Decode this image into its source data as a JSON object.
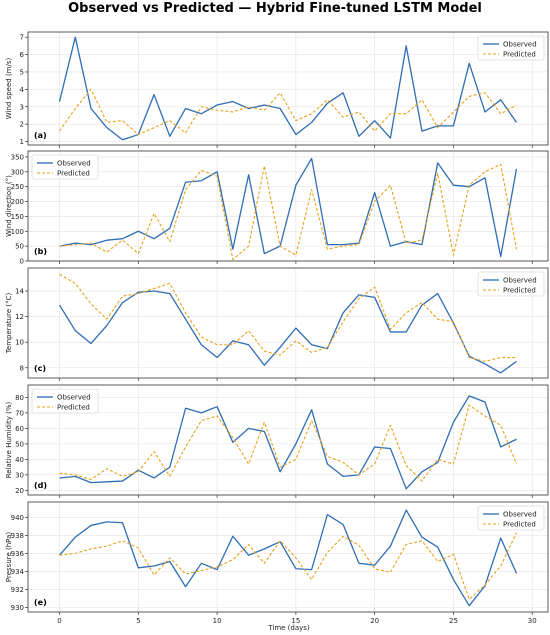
{
  "title": "Observed vs Predicted — Hybrid Fine-tuned LSTM Model",
  "xlabel": "Time (days)",
  "x_ticks": [
    0,
    5,
    10,
    15,
    20,
    25,
    30
  ],
  "x_tick_labels": [
    "0",
    "5",
    "10",
    "15",
    "20",
    "25",
    "30"
  ],
  "colors": {
    "observed": "#2f6db5",
    "predicted": "#e7a21a",
    "grid": "#e3e3e3",
    "axes": "#333333"
  },
  "chart_data": [
    {
      "type": "line",
      "panel_label": "(a)",
      "ylabel": "Wind speed (m/s)",
      "ylim": [
        0.8,
        7.3
      ],
      "y_ticks": [
        1,
        2,
        3,
        4,
        5,
        6,
        7
      ],
      "y_tick_labels": [
        "1",
        "2",
        "3",
        "4",
        "5",
        "6",
        "7"
      ],
      "x": [
        0,
        1,
        2,
        3,
        4,
        5,
        6,
        7,
        8,
        9,
        10,
        11,
        12,
        13,
        14,
        15,
        16,
        17,
        18,
        19,
        20,
        21,
        22,
        23,
        24,
        25,
        26,
        27,
        28,
        29
      ],
      "legend_position": "top-right",
      "grid": true,
      "series": [
        {
          "name": "Observed",
          "style": "solid",
          "values": [
            3.3,
            7.0,
            2.9,
            1.8,
            1.1,
            1.4,
            3.7,
            1.3,
            2.9,
            2.6,
            3.1,
            3.3,
            2.9,
            3.1,
            2.9,
            1.4,
            2.1,
            3.2,
            3.8,
            1.3,
            2.2,
            1.2,
            6.5,
            1.6,
            1.9,
            1.9,
            5.5,
            2.7,
            3.4,
            2.1
          ]
        },
        {
          "name": "Predicted",
          "style": "dashed",
          "values": [
            1.6,
            2.9,
            4.0,
            2.1,
            2.2,
            1.4,
            1.8,
            2.2,
            1.5,
            3.0,
            2.8,
            2.7,
            3.0,
            2.8,
            3.8,
            2.2,
            2.6,
            3.4,
            2.4,
            2.7,
            1.6,
            2.6,
            2.6,
            3.4,
            1.8,
            2.7,
            3.6,
            3.8,
            2.6,
            3.1
          ]
        }
      ]
    },
    {
      "type": "line",
      "panel_label": "(b)",
      "ylabel": "Wind direction (°)",
      "ylim": [
        0,
        370
      ],
      "y_ticks": [
        0,
        50,
        100,
        150,
        200,
        250,
        300,
        350
      ],
      "y_tick_labels": [
        "0",
        "50",
        "100",
        "150",
        "200",
        "250",
        "300",
        "350"
      ],
      "x": [
        0,
        1,
        2,
        3,
        4,
        5,
        6,
        7,
        8,
        9,
        10,
        11,
        12,
        13,
        14,
        15,
        16,
        17,
        18,
        19,
        20,
        21,
        22,
        23,
        24,
        25,
        26,
        27,
        28,
        29
      ],
      "legend_position": "top-left",
      "grid": true,
      "series": [
        {
          "name": "Observed",
          "style": "solid",
          "values": [
            50,
            60,
            55,
            70,
            75,
            100,
            75,
            110,
            265,
            270,
            300,
            40,
            290,
            25,
            50,
            255,
            345,
            55,
            55,
            60,
            230,
            50,
            65,
            55,
            330,
            255,
            250,
            280,
            15,
            310
          ]
        },
        {
          "name": "Predicted",
          "style": "dashed",
          "values": [
            50,
            55,
            60,
            30,
            70,
            25,
            160,
            65,
            240,
            305,
            285,
            5,
            50,
            320,
            50,
            20,
            240,
            40,
            50,
            55,
            200,
            255,
            60,
            70,
            295,
            20,
            255,
            300,
            325,
            40
          ]
        }
      ]
    },
    {
      "type": "line",
      "panel_label": "(c)",
      "ylabel": "Temperature (°C)",
      "ylim": [
        7.2,
        15.8
      ],
      "y_ticks": [
        8,
        10,
        12,
        14
      ],
      "y_tick_labels": [
        "8",
        "10",
        "12",
        "14"
      ],
      "x": [
        0,
        1,
        2,
        3,
        4,
        5,
        6,
        7,
        8,
        9,
        10,
        11,
        12,
        13,
        14,
        15,
        16,
        17,
        18,
        19,
        20,
        21,
        22,
        23,
        24,
        25,
        26,
        27,
        28,
        29
      ],
      "legend_position": "top-right",
      "grid": true,
      "series": [
        {
          "name": "Observed",
          "style": "solid",
          "values": [
            12.9,
            10.9,
            9.9,
            11.3,
            13.1,
            13.9,
            14.0,
            13.8,
            11.8,
            9.8,
            8.8,
            10.1,
            9.8,
            8.2,
            9.6,
            11.1,
            9.8,
            9.5,
            12.3,
            13.7,
            13.5,
            10.8,
            10.8,
            12.9,
            13.8,
            11.5,
            8.9,
            8.3,
            7.6,
            8.5
          ]
        },
        {
          "name": "Predicted",
          "style": "dashed",
          "values": [
            15.3,
            14.6,
            13.0,
            11.8,
            13.6,
            13.8,
            14.2,
            14.6,
            12.3,
            10.4,
            9.8,
            9.8,
            10.9,
            9.3,
            9.0,
            10.1,
            9.2,
            9.6,
            11.6,
            13.4,
            14.3,
            11.0,
            12.3,
            13.1,
            11.8,
            11.6,
            8.8,
            8.5,
            8.8,
            8.8
          ]
        }
      ]
    },
    {
      "type": "line",
      "panel_label": "(d)",
      "ylabel": "Relative Humidity (%)",
      "ylim": [
        17,
        88
      ],
      "y_ticks": [
        20,
        30,
        40,
        50,
        60,
        70,
        80
      ],
      "y_tick_labels": [
        "20",
        "30",
        "40",
        "50",
        "60",
        "70",
        "80"
      ],
      "x": [
        0,
        1,
        2,
        3,
        4,
        5,
        6,
        7,
        8,
        9,
        10,
        11,
        12,
        13,
        14,
        15,
        16,
        17,
        18,
        19,
        20,
        21,
        22,
        23,
        24,
        25,
        26,
        27,
        28,
        29
      ],
      "legend_position": "top-left",
      "grid": true,
      "series": [
        {
          "name": "Observed",
          "style": "solid",
          "values": [
            28,
            29,
            25,
            25.5,
            26,
            33,
            28,
            35,
            73,
            70,
            74,
            51,
            60,
            58,
            32,
            50,
            72,
            37,
            29,
            30,
            48,
            47,
            21,
            32,
            38,
            64,
            81,
            77,
            48,
            53
          ]
        },
        {
          "name": "Predicted",
          "style": "dashed",
          "values": [
            31,
            30,
            27,
            34,
            29,
            32,
            45,
            29,
            48,
            65,
            68,
            54,
            37,
            64,
            35,
            40,
            65,
            42,
            38,
            30,
            37,
            62,
            36,
            26,
            40,
            37,
            75,
            68,
            62,
            37
          ]
        }
      ]
    },
    {
      "type": "line",
      "panel_label": "(e)",
      "ylabel": "Pressure (hPa)",
      "ylim": [
        929.5,
        941.7
      ],
      "y_ticks": [
        930,
        932,
        934,
        936,
        938,
        940
      ],
      "y_tick_labels": [
        "930",
        "932",
        "934",
        "936",
        "938",
        "940"
      ],
      "x": [
        0,
        1,
        2,
        3,
        4,
        5,
        6,
        7,
        8,
        9,
        10,
        11,
        12,
        13,
        14,
        15,
        16,
        17,
        18,
        19,
        20,
        21,
        22,
        23,
        24,
        25,
        26,
        27,
        28,
        29
      ],
      "legend_position": "top-right",
      "grid": true,
      "series": [
        {
          "name": "Observed",
          "style": "solid",
          "values": [
            935.8,
            937.8,
            939.1,
            939.5,
            939.4,
            934.4,
            934.6,
            935.1,
            932.3,
            934.9,
            934.2,
            937.9,
            935.8,
            936.5,
            937.3,
            934.3,
            934.2,
            940.3,
            939.2,
            934.9,
            934.7,
            936.8,
            940.8,
            937.8,
            936.7,
            933.1,
            930.2,
            932.4,
            937.7,
            933.8
          ]
        },
        {
          "name": "Predicted",
          "style": "dashed",
          "values": [
            935.8,
            936.0,
            936.5,
            936.8,
            937.4,
            936.6,
            933.6,
            935.5,
            933.7,
            934.1,
            934.5,
            935.3,
            937.0,
            934.9,
            937.4,
            935.5,
            933.1,
            936.1,
            937.9,
            936.9,
            934.3,
            933.9,
            937.0,
            937.4,
            935.1,
            935.9,
            930.9,
            932.5,
            934.6,
            938.3
          ]
        }
      ]
    }
  ]
}
